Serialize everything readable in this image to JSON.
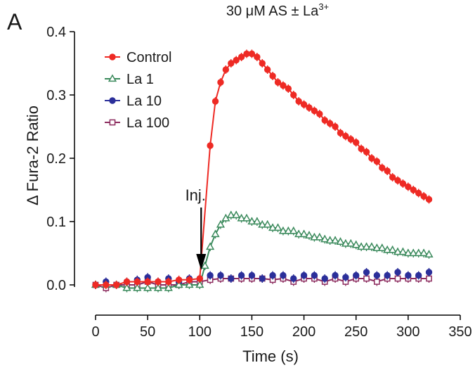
{
  "panel_label": "A",
  "chart_data": {
    "type": "line",
    "title": "30 μM AS ± La",
    "title_superscript": "3+",
    "xlabel": "Time (s)",
    "ylabel": "Δ Fura-2 Ratio",
    "xlim": [
      0,
      350
    ],
    "ylim": [
      0,
      0.4
    ],
    "x_ticks": [
      0,
      50,
      100,
      150,
      200,
      250,
      300,
      350
    ],
    "x_tick_labels": [
      "0",
      "50",
      "100",
      "150",
      "200",
      "250",
      "300",
      "350"
    ],
    "y_ticks": [
      0,
      0.1,
      0.2,
      0.3,
      0.4
    ],
    "y_tick_labels": [
      "0.0",
      "0.1",
      "0.2",
      "0.3",
      "0.4"
    ],
    "grid": false,
    "legend_position": "top-left",
    "annotation": {
      "text": "Inj.",
      "x": 102,
      "y": 0.02
    },
    "series": [
      {
        "name": "Control",
        "color": "#ee2a24",
        "marker": "filled-circle",
        "line": true,
        "x": [
          0,
          10,
          20,
          30,
          40,
          50,
          60,
          70,
          80,
          90,
          100,
          110,
          115,
          120,
          125,
          130,
          135,
          140,
          145,
          150,
          155,
          160,
          165,
          170,
          175,
          180,
          185,
          190,
          195,
          200,
          205,
          210,
          215,
          220,
          225,
          230,
          235,
          240,
          245,
          250,
          255,
          260,
          265,
          270,
          275,
          280,
          285,
          290,
          295,
          300,
          305,
          310,
          315,
          320
        ],
        "y": [
          0.0,
          0.0,
          0.0,
          0.005,
          0.005,
          0.005,
          0.005,
          0.005,
          0.008,
          0.008,
          0.01,
          0.22,
          0.29,
          0.32,
          0.34,
          0.35,
          0.355,
          0.36,
          0.365,
          0.365,
          0.36,
          0.35,
          0.34,
          0.33,
          0.32,
          0.315,
          0.31,
          0.3,
          0.29,
          0.285,
          0.28,
          0.275,
          0.27,
          0.26,
          0.255,
          0.25,
          0.24,
          0.235,
          0.23,
          0.225,
          0.215,
          0.21,
          0.2,
          0.195,
          0.185,
          0.18,
          0.17,
          0.165,
          0.16,
          0.155,
          0.15,
          0.145,
          0.14,
          0.135
        ]
      },
      {
        "name": "La 1",
        "color": "#3b8a5c",
        "marker": "open-triangle",
        "line": true,
        "x": [
          0,
          10,
          20,
          30,
          40,
          50,
          60,
          70,
          80,
          90,
          100,
          105,
          110,
          115,
          120,
          125,
          130,
          135,
          140,
          145,
          150,
          155,
          160,
          165,
          170,
          175,
          180,
          185,
          190,
          195,
          200,
          205,
          210,
          215,
          220,
          225,
          230,
          235,
          240,
          245,
          250,
          255,
          260,
          265,
          270,
          275,
          280,
          285,
          290,
          295,
          300,
          305,
          310,
          315,
          320
        ],
        "y": [
          0.0,
          0.0,
          0.0,
          -0.005,
          -0.005,
          -0.005,
          -0.005,
          -0.005,
          0.0,
          0.0,
          0.0,
          0.03,
          0.06,
          0.08,
          0.095,
          0.105,
          0.11,
          0.11,
          0.105,
          0.105,
          0.1,
          0.1,
          0.095,
          0.095,
          0.09,
          0.09,
          0.085,
          0.085,
          0.085,
          0.08,
          0.08,
          0.078,
          0.075,
          0.075,
          0.072,
          0.07,
          0.07,
          0.068,
          0.065,
          0.065,
          0.063,
          0.06,
          0.06,
          0.06,
          0.058,
          0.058,
          0.055,
          0.055,
          0.052,
          0.052,
          0.05,
          0.05,
          0.05,
          0.05,
          0.048
        ]
      },
      {
        "name": "La 10",
        "color": "#2b2f9a",
        "marker": "filled-circle",
        "line": false,
        "x": [
          0,
          10,
          20,
          30,
          40,
          50,
          60,
          70,
          80,
          90,
          100,
          110,
          120,
          130,
          140,
          150,
          160,
          170,
          180,
          190,
          200,
          210,
          220,
          230,
          240,
          250,
          260,
          270,
          280,
          290,
          300,
          310,
          320
        ],
        "y": [
          0.0,
          0.005,
          0.0,
          0.005,
          0.008,
          0.012,
          0.005,
          0.01,
          0.005,
          0.01,
          0.01,
          0.015,
          0.015,
          0.01,
          0.015,
          0.015,
          0.01,
          0.015,
          0.015,
          0.01,
          0.015,
          0.015,
          0.01,
          0.015,
          0.012,
          0.015,
          0.02,
          0.015,
          0.015,
          0.02,
          0.015,
          0.015,
          0.02
        ]
      },
      {
        "name": "La 100",
        "color": "#8c2b5e",
        "marker": "open-square",
        "line": true,
        "x": [
          0,
          10,
          20,
          30,
          40,
          50,
          60,
          70,
          80,
          90,
          100,
          110,
          120,
          130,
          140,
          150,
          160,
          170,
          180,
          190,
          200,
          210,
          220,
          230,
          240,
          250,
          260,
          270,
          280,
          290,
          300,
          310,
          320
        ],
        "y": [
          0.0,
          -0.005,
          0.0,
          0.0,
          0.0,
          0.005,
          0.0,
          0.0,
          0.0,
          0.005,
          0.005,
          0.008,
          0.01,
          0.01,
          0.01,
          0.01,
          0.01,
          0.008,
          0.01,
          0.005,
          0.01,
          0.01,
          0.005,
          0.01,
          0.005,
          0.01,
          0.01,
          0.005,
          0.01,
          0.01,
          0.01,
          0.01,
          0.01
        ]
      }
    ]
  }
}
